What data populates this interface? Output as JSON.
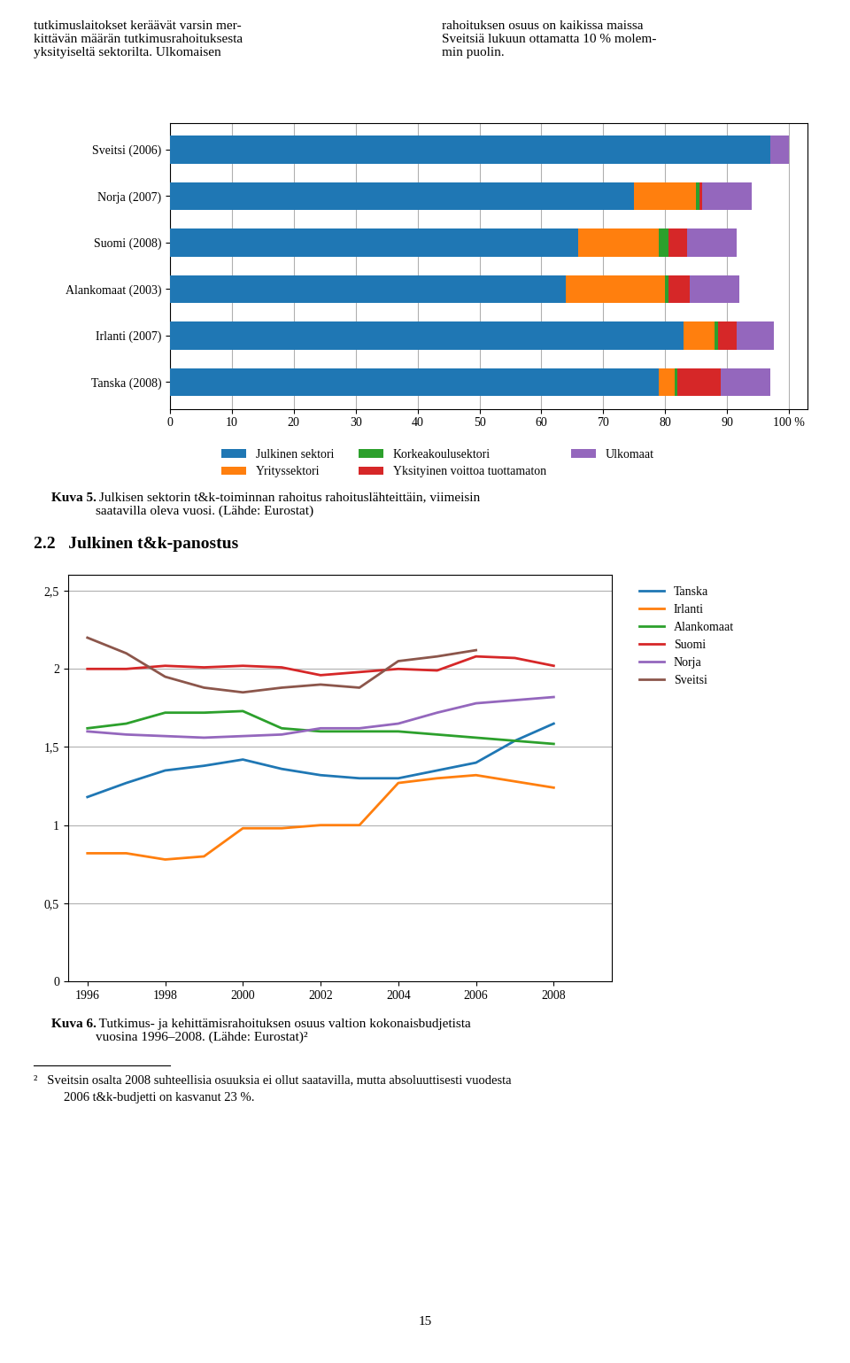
{
  "chart_data": [
    {
      "type": "bar",
      "orientation": "horizontal",
      "stacked": true,
      "title": "Kuva 5.",
      "subtitle": " Julkisen sektorin t&k-toiminnan rahoitus rahoituslähteittäin, viimeisin\nsaatavilla oleva vuosi. (Lähde: Eurostat)",
      "annotations": [
        "tutkimuslaitokset keräävät varsin mer-\nkittävän määrän tutkimusrahoituksesta\nyksityiseltä sektorilta. Ulkomaisen",
        "rahoituksen osuus on kaikissa maissa\nSveitsiä lukuun ottamatta 10 % molem-\nmin puolin."
      ],
      "categories": [
        "Sveitsi (2006)",
        "Norja (2007)",
        "Suomi (2008)",
        "Alankomaat (2003)",
        "Irlanti (2007)",
        "Tanska (2008)"
      ],
      "series": [
        {
          "name": "Julkinen sektori",
          "values": [
            97.0,
            75.0,
            66.0,
            64.0,
            83.0,
            79.0
          ]
        },
        {
          "name": "Yrityssektori",
          "values": [
            0.0,
            10.0,
            13.0,
            16.0,
            5.0,
            2.5
          ]
        },
        {
          "name": "Korkeakoulusektori",
          "values": [
            0.0,
            0.5,
            1.5,
            0.5,
            0.5,
            0.5
          ]
        },
        {
          "name": "Yksityinen voittoa tuottamaton",
          "values": [
            0.0,
            0.5,
            3.0,
            3.5,
            3.0,
            7.0
          ]
        },
        {
          "name": "Ulkomaat",
          "values": [
            3.0,
            8.0,
            8.0,
            8.0,
            6.0,
            8.0
          ]
        }
      ],
      "xlim": [
        0,
        103
      ],
      "xticks": [
        0,
        10,
        20,
        30,
        40,
        50,
        60,
        70,
        80,
        90,
        {
          "value": 100,
          "label": "100 %"
        }
      ],
      "grid": true,
      "legend": "bottom"
    },
    {
      "type": "line",
      "title": "Kuva 6.",
      "subtitle": " Tutkimus- ja kehittämisrahoituksen osuus valtion kokonaisbudjetista\nvuosina 1996–2008. (Lähde: Eurostat)²",
      "annotations": [
        "2.2   Julkinen t&k-panostus",
        "²   Sveitsin osalta 2008 suhteellisia osuuksia ei ollut saatavilla, mutta absoluuttisesti vuodesta",
        "2006 t&k-budjetti on kasvanut 23 %.",
        "15"
      ],
      "x": [
        1996,
        1997,
        1998,
        1999,
        2000,
        2001,
        2002,
        2003,
        2004,
        2005,
        2006,
        2007,
        2008
      ],
      "series": [
        {
          "name": "Tanska",
          "values": [
            1.18,
            1.27,
            1.35,
            1.38,
            1.42,
            1.36,
            1.32,
            1.3,
            1.3,
            1.35,
            1.4,
            1.54,
            1.65
          ]
        },
        {
          "name": "Irlanti",
          "values": [
            0.82,
            0.82,
            0.78,
            0.8,
            0.98,
            0.98,
            1.0,
            1.0,
            1.27,
            1.3,
            1.32,
            1.28,
            1.24
          ]
        },
        {
          "name": "Alankomaat",
          "values": [
            1.62,
            1.65,
            1.72,
            1.72,
            1.73,
            1.62,
            1.6,
            1.6,
            1.6,
            1.58,
            1.56,
            1.54,
            1.52
          ]
        },
        {
          "name": "Suomi",
          "values": [
            2.0,
            2.0,
            2.02,
            2.01,
            2.02,
            2.01,
            1.96,
            1.98,
            2.0,
            1.99,
            2.08,
            2.07,
            2.02
          ]
        },
        {
          "name": "Norja",
          "values": [
            1.6,
            1.58,
            1.57,
            1.56,
            1.57,
            1.58,
            1.62,
            1.62,
            1.65,
            1.72,
            1.78,
            1.8,
            1.82
          ]
        },
        {
          "name": "Sveitsi",
          "values": [
            2.2,
            2.1,
            1.95,
            1.88,
            1.85,
            1.88,
            1.9,
            1.88,
            2.05,
            2.08,
            2.12,
            null,
            null
          ]
        }
      ],
      "xlim": [
        1995.5,
        2009.5
      ],
      "xticks": [
        1996,
        1998,
        2000,
        2002,
        2004,
        2006,
        2008
      ],
      "ylim": [
        0,
        2.6
      ],
      "yticks": [
        0,
        {
          "value": 0.5,
          "label": "0,5"
        },
        1,
        {
          "value": 1.5,
          "label": "1,5"
        },
        2,
        {
          "value": 2.5,
          "label": "2,5"
        }
      ],
      "grid": true,
      "legend": "right"
    }
  ]
}
